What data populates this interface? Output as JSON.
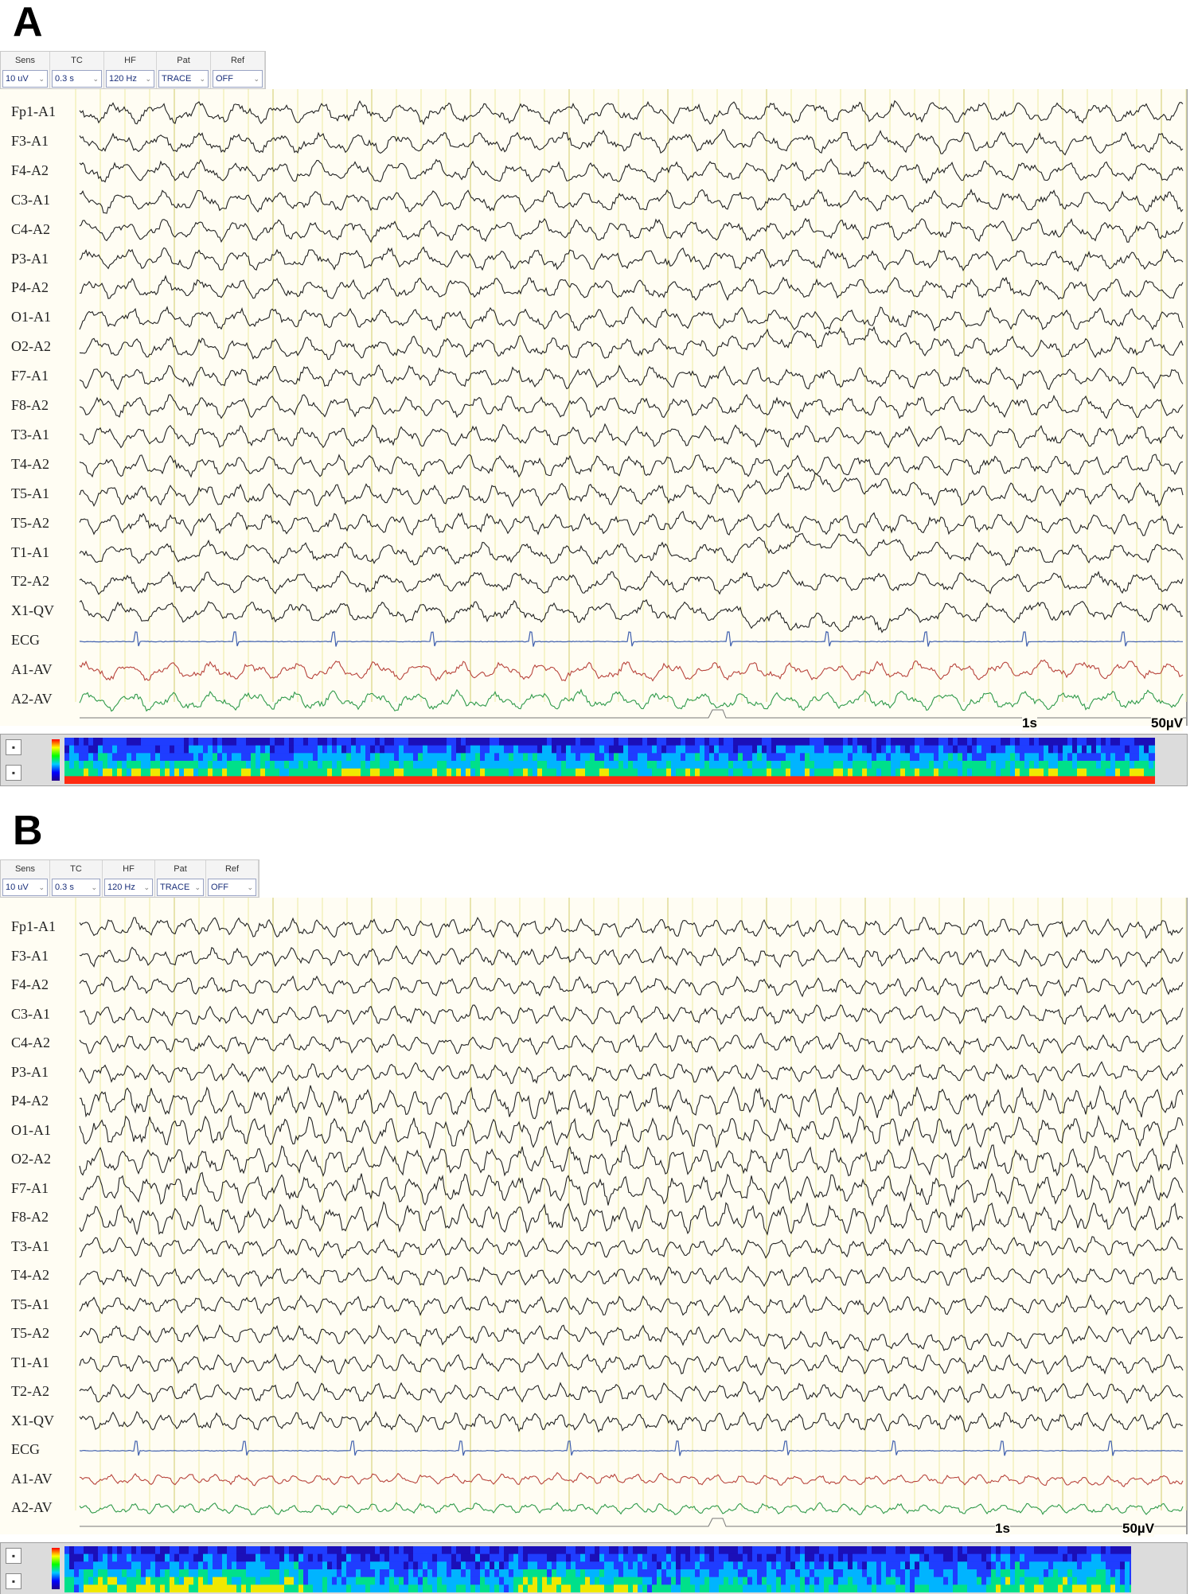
{
  "panels": [
    {
      "letter": "A",
      "toolbar": [
        {
          "label": "Sens",
          "value": "10 uV"
        },
        {
          "label": "TC",
          "value": "0.3 s"
        },
        {
          "label": "HF",
          "value": "120 Hz"
        },
        {
          "label": "Pat",
          "value": "TRACE"
        },
        {
          "label": "Ref",
          "value": "OFF"
        }
      ],
      "channels": [
        "Fp1-A1",
        "F3-A1",
        "F4-A2",
        "C3-A1",
        "C4-A2",
        "P3-A1",
        "P4-A2",
        "O1-A1",
        "O2-A2",
        "F7-A1",
        "F8-A2",
        "T3-A1",
        "T4-A2",
        "T5-A1",
        "T5-A2",
        "T1-A1",
        "T2-A2",
        "X1-QV",
        "ECG",
        "A1-AV",
        "A2-AV"
      ],
      "scale": {
        "time": "1s",
        "amplitude": "50µV"
      }
    },
    {
      "letter": "B",
      "toolbar": [
        {
          "label": "Sens",
          "value": "10 uV"
        },
        {
          "label": "TC",
          "value": "0.3 s"
        },
        {
          "label": "HF",
          "value": "120 Hz"
        },
        {
          "label": "Pat",
          "value": "TRACE"
        },
        {
          "label": "Ref",
          "value": "OFF"
        }
      ],
      "channels": [
        "Fp1-A1",
        "F3-A1",
        "F4-A2",
        "C3-A1",
        "C4-A2",
        "P3-A1",
        "P4-A2",
        "O1-A1",
        "O2-A2",
        "F7-A1",
        "F8-A2",
        "T3-A1",
        "T4-A2",
        "T5-A1",
        "T5-A2",
        "T1-A1",
        "T2-A2",
        "X1-QV",
        "ECG",
        "A1-AV",
        "A2-AV"
      ],
      "scale": {
        "time": "1s",
        "amplitude": "50µV"
      }
    }
  ],
  "colors": {
    "eeg_trace": "#222222",
    "ecg_trace": "#3f5fae",
    "a1_trace": "#b8443c",
    "a2_trace": "#2f9a4a",
    "grid_line": "#f0eeb0",
    "background": "#fffdf3"
  },
  "icons": {
    "dropdown": "chevron-down-icon",
    "spectrogram_control": "square-button-icon"
  }
}
